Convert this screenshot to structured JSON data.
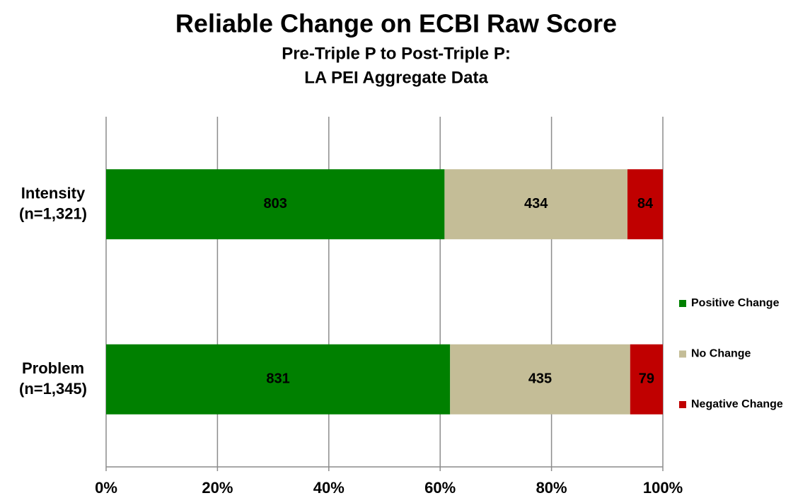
{
  "chart_data": {
    "type": "bar",
    "orientation": "horizontal",
    "stacked": "percent",
    "title": "Reliable Change on ECBI Raw Score",
    "subtitle": [
      "Pre-Triple P to Post-Triple P:",
      "LA PEI Aggregate Data"
    ],
    "categories": [
      [
        "Intensity",
        "(n=1,321)"
      ],
      [
        "Problem",
        "(n=1,345)"
      ]
    ],
    "series": [
      {
        "name": "Positive Change",
        "color": "#008000",
        "values": [
          803,
          831
        ]
      },
      {
        "name": "No Change",
        "color": "#c4bd97",
        "values": [
          434,
          435
        ]
      },
      {
        "name": "Negative Change",
        "color": "#c00000",
        "values": [
          84,
          79
        ]
      }
    ],
    "xlim": [
      0,
      100
    ],
    "xticks": [
      {
        "value": 0,
        "label": "0%"
      },
      {
        "value": 20,
        "label": "20%"
      },
      {
        "value": 40,
        "label": "40%"
      },
      {
        "value": 60,
        "label": "60%"
      },
      {
        "value": 80,
        "label": "80%"
      },
      {
        "value": 100,
        "label": "100%"
      }
    ],
    "grid": true,
    "legend": "right"
  }
}
